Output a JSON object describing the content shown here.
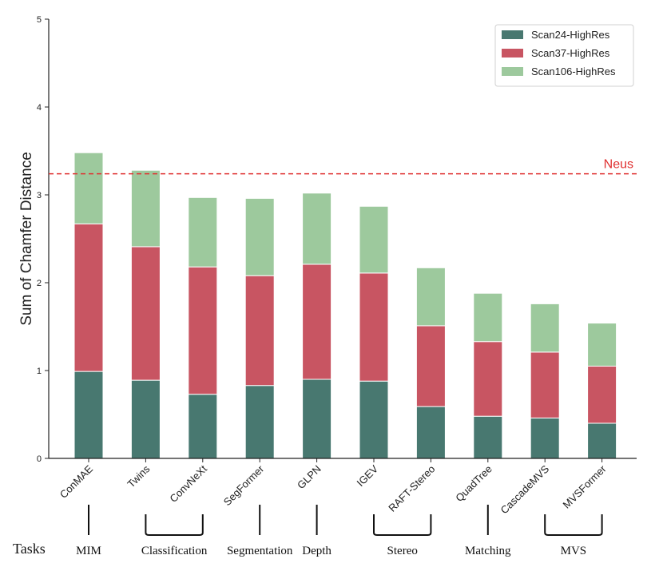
{
  "chart_data": {
    "type": "bar",
    "stacked": true,
    "ylabel": "Sum of Chamfer Distance",
    "ylim": [
      0,
      5
    ],
    "yticks": [
      "0",
      "1",
      "2",
      "3",
      "4",
      "5"
    ],
    "categories": [
      "ConMAE",
      "Twins",
      "ConvNeXt",
      "SegFormer",
      "GLPN",
      "IGEV",
      "RAFT-Stereo",
      "QuadTree",
      "CascadeMVS",
      "MVSFormer"
    ],
    "series": [
      {
        "name": "Scan24-HighRes",
        "color": "#487870",
        "values": [
          0.99,
          0.89,
          0.73,
          0.83,
          0.9,
          0.88,
          0.59,
          0.48,
          0.46,
          0.4
        ]
      },
      {
        "name": "Scan37-HighRes",
        "color": "#c85562",
        "values": [
          1.68,
          1.52,
          1.45,
          1.25,
          1.31,
          1.23,
          0.92,
          0.85,
          0.75,
          0.65
        ]
      },
      {
        "name": "Scan106-HighRes",
        "color": "#9dc99d",
        "values": [
          0.81,
          0.87,
          0.79,
          0.88,
          0.81,
          0.76,
          0.66,
          0.55,
          0.55,
          0.49
        ]
      }
    ],
    "reference_line": {
      "label": "Neus",
      "value": 3.24,
      "color": "#e03030"
    },
    "legend_position": "top-right",
    "grid": false
  },
  "tasks": {
    "title": "Tasks",
    "groups": [
      {
        "label": "MIM",
        "from": 0,
        "to": 0
      },
      {
        "label": "Classification",
        "from": 1,
        "to": 2
      },
      {
        "label": "Segmentation",
        "from": 3,
        "to": 3
      },
      {
        "label": "Depth",
        "from": 4,
        "to": 4
      },
      {
        "label": "Stereo",
        "from": 5,
        "to": 6
      },
      {
        "label": "Matching",
        "from": 7,
        "to": 7
      },
      {
        "label": "MVS",
        "from": 8,
        "to": 9
      }
    ]
  }
}
